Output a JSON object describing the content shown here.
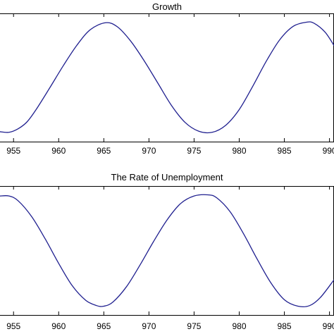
{
  "chart_data": [
    {
      "type": "line",
      "title": "Growth",
      "xlim": [
        1953.5,
        1990.5
      ],
      "ylim": [
        -1.1,
        1.1
      ],
      "x_ticks": [
        1955,
        1960,
        1965,
        1970,
        1975,
        1980,
        1985,
        1990
      ],
      "x_tick_labels": [
        "955",
        "960",
        "965",
        "970",
        "975",
        "980",
        "985",
        "990"
      ],
      "series": [
        {
          "color": "#1f1f8f",
          "x": [
            1953.5,
            1954.5,
            1955.5,
            1956.5,
            1957.5,
            1959,
            1960.5,
            1962,
            1963.5,
            1965.2,
            1966.5,
            1968,
            1969.5,
            1971,
            1972.5,
            1974,
            1975.5,
            1977,
            1978.5,
            1980,
            1981.5,
            1983,
            1984.5,
            1986,
            1987.5,
            1988.3,
            1989.5,
            1990.5
          ],
          "y": [
            -0.93,
            -0.94,
            -0.88,
            -0.76,
            -0.55,
            -0.18,
            0.2,
            0.55,
            0.82,
            0.94,
            0.87,
            0.62,
            0.28,
            -0.1,
            -0.48,
            -0.77,
            -0.92,
            -0.94,
            -0.82,
            -0.55,
            -0.15,
            0.28,
            0.65,
            0.88,
            0.95,
            0.93,
            0.78,
            0.55
          ]
        }
      ]
    },
    {
      "type": "line",
      "title": "The Rate of Unemployment",
      "xlim": [
        1953.5,
        1990.5
      ],
      "ylim": [
        -1.1,
        1.1
      ],
      "x_ticks": [
        1955,
        1960,
        1965,
        1970,
        1975,
        1980,
        1985,
        1990
      ],
      "x_tick_labels": [
        "955",
        "960",
        "965",
        "970",
        "975",
        "980",
        "985",
        "990"
      ],
      "series": [
        {
          "color": "#1f1f8f",
          "x": [
            1953.5,
            1954.5,
            1955.5,
            1957,
            1958.5,
            1960,
            1961.5,
            1963,
            1964.2,
            1965,
            1966,
            1967.5,
            1969,
            1970.5,
            1972,
            1973.5,
            1975,
            1976.5,
            1977.5,
            1979,
            1980.5,
            1982,
            1983.5,
            1985,
            1986.5,
            1987.8,
            1989,
            1990.5
          ],
          "y": [
            0.93,
            0.93,
            0.85,
            0.58,
            0.2,
            -0.22,
            -0.6,
            -0.85,
            -0.94,
            -0.95,
            -0.88,
            -0.62,
            -0.25,
            0.15,
            0.52,
            0.8,
            0.93,
            0.95,
            0.9,
            0.66,
            0.28,
            -0.15,
            -0.55,
            -0.84,
            -0.95,
            -0.94,
            -0.8,
            -0.5
          ]
        }
      ]
    }
  ]
}
